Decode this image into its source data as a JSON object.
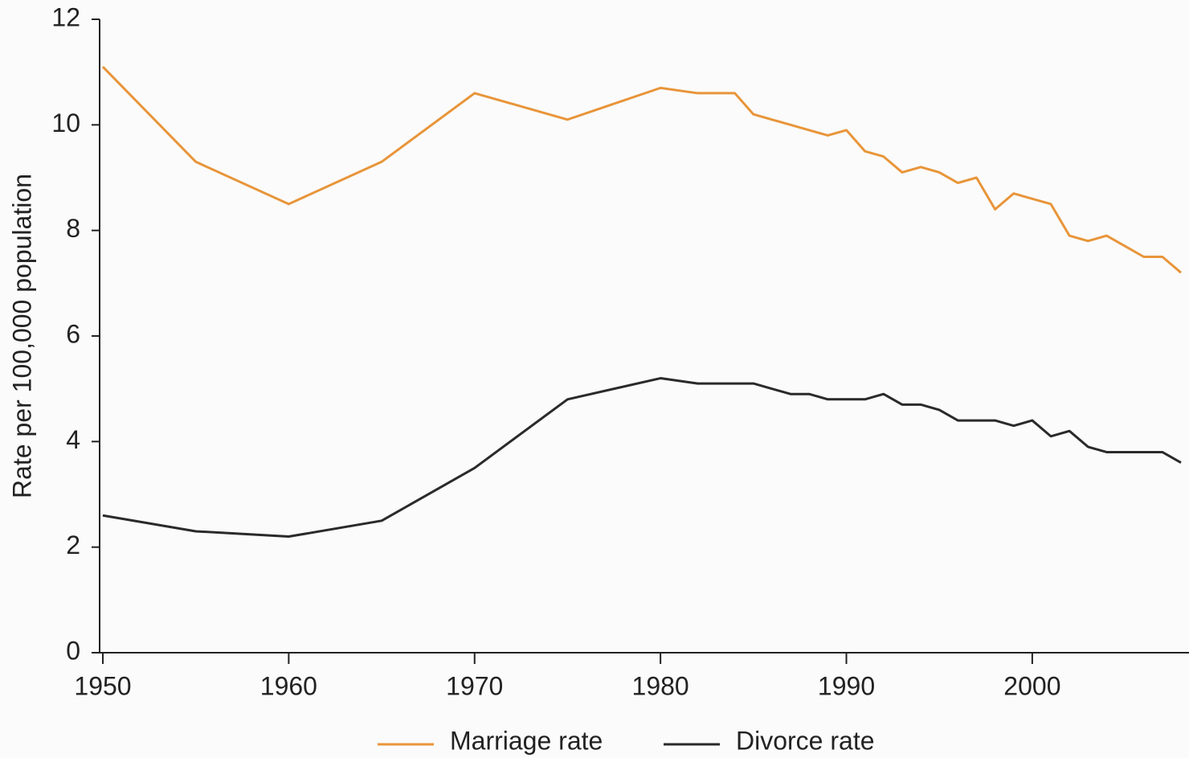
{
  "chart_data": {
    "type": "line",
    "y_label": "Rate per 100,000 population",
    "x": [
      1950,
      1955,
      1960,
      1965,
      1970,
      1975,
      1980,
      1982,
      1984,
      1985,
      1986,
      1987,
      1988,
      1989,
      1990,
      1991,
      1992,
      1993,
      1994,
      1995,
      1996,
      1997,
      1998,
      1999,
      2000,
      2001,
      2002,
      2003,
      2004,
      2005,
      2006,
      2007,
      2008
    ],
    "series": [
      {
        "name": "Marriage rate",
        "color": "#e8953a",
        "values": [
          11.1,
          9.3,
          8.5,
          9.3,
          10.6,
          10.1,
          10.7,
          10.6,
          10.6,
          10.2,
          10.1,
          10.0,
          9.9,
          9.8,
          9.9,
          9.5,
          9.4,
          9.1,
          9.2,
          9.1,
          8.9,
          9.0,
          8.4,
          8.7,
          8.6,
          8.5,
          7.9,
          7.8,
          7.9,
          7.7,
          7.5,
          7.5,
          7.2
        ]
      },
      {
        "name": "Divorce rate",
        "color": "#2a2a2a",
        "values": [
          2.6,
          2.3,
          2.2,
          2.5,
          3.5,
          4.8,
          5.2,
          5.1,
          5.1,
          5.1,
          5.0,
          4.9,
          4.9,
          4.8,
          4.8,
          4.8,
          4.9,
          4.7,
          4.7,
          4.6,
          4.4,
          4.4,
          4.4,
          4.3,
          4.4,
          4.1,
          4.2,
          3.9,
          3.8,
          3.8,
          3.8,
          3.8,
          3.6
        ]
      }
    ],
    "xlim": [
      1950,
      2008
    ],
    "xticks": [
      1950,
      1960,
      1970,
      1980,
      1990,
      2000
    ],
    "ylim": [
      0,
      12
    ],
    "yticks": [
      0,
      2,
      4,
      6,
      8,
      10,
      12
    ],
    "legend": "bottom"
  }
}
